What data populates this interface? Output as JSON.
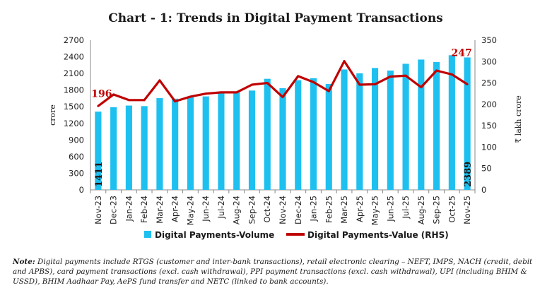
{
  "chart_data": {
    "type": "bar+line",
    "title": "Chart - 1: Trends in Digital Payment Transactions",
    "categories": [
      "Nov-23",
      "Dec-23",
      "Jan-24",
      "Feb-24",
      "Mar-24",
      "Apr-24",
      "May-24",
      "Jun-24",
      "Jul-24",
      "Aug-24",
      "Sep-24",
      "Oct-24",
      "Nov-24",
      "Dec-24",
      "Jan-25",
      "Feb-25",
      "Mar-25",
      "Apr-25",
      "May-25",
      "Jun-25",
      "Jul-25",
      "Aug-25",
      "Sep-25",
      "Oct-25",
      "Nov-25"
    ],
    "series": [
      {
        "name": "Digital Payments-Volume",
        "type": "bar",
        "axis": "left",
        "color": "#1ec0f0",
        "values": [
          1411,
          1492,
          1521,
          1511,
          1655,
          1645,
          1673,
          1686,
          1765,
          1775,
          1792,
          2004,
          1835,
          1979,
          2015,
          1910,
          2172,
          2103,
          2199,
          2153,
          2275,
          2351,
          2307,
          2429,
          2389
        ]
      },
      {
        "name": "Digital Payments-Value (RHS)",
        "type": "line",
        "axis": "right",
        "color": "#c00000",
        "values": [
          196,
          223,
          210,
          210,
          256,
          207,
          218,
          225,
          228,
          228,
          246,
          250,
          217,
          266,
          252,
          231,
          301,
          246,
          247,
          265,
          267,
          240,
          279,
          270,
          247
        ]
      }
    ],
    "data_labels": {
      "volume_first": "1411",
      "volume_last": "2389",
      "value_first": "196",
      "value_last": "247"
    },
    "left_axis": {
      "label": "crore",
      "ylim": [
        0,
        2700
      ],
      "ticks": [
        "0",
        "300",
        "600",
        "900",
        "1200",
        "1500",
        "1800",
        "2100",
        "2400",
        "2700"
      ]
    },
    "right_axis": {
      "label": "₹ lakh crore",
      "ylim": [
        0,
        350
      ],
      "ticks": [
        "0",
        "50",
        "100",
        "150",
        "200",
        "250",
        "300",
        "350"
      ]
    },
    "grid": false,
    "legend": "bottom"
  },
  "note": {
    "prefix": "Note:",
    "text": " Digital payments include RTGS (customer and inter-bank transactions), retail electronic clearing – NEFT, IMPS, NACH (credit, debit and APBS), card payment transactions (excl. cash withdrawal), PPI payment transactions (excl. cash withdrawal), UPI (including BHIM & USSD), BHIM Aadhaar Pay, AePS fund transfer and NETC (linked to bank accounts)."
  }
}
